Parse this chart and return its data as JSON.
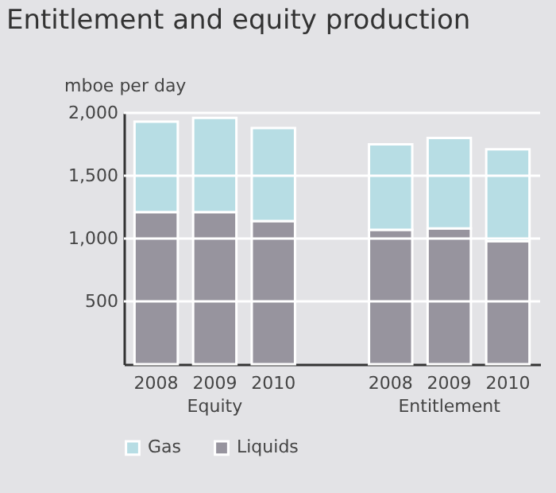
{
  "chart_data": {
    "type": "bar",
    "title": "Entitlement and equity production",
    "ylabel": "mboe per day",
    "categories": [
      "2008",
      "2009",
      "2010",
      "2008",
      "2009",
      "2010"
    ],
    "annotations": [
      "Equity",
      "Entitlement"
    ],
    "stacked": true,
    "series": [
      {
        "name": "Liquids",
        "color": "#97949e",
        "values": [
          1210,
          1210,
          1140,
          1070,
          1080,
          980
        ]
      },
      {
        "name": "Gas",
        "color": "#b7dde4",
        "values": [
          720,
          750,
          740,
          680,
          720,
          730
        ]
      }
    ],
    "ylim": [
      0,
      2000
    ],
    "yticks": [
      {
        "value": 500,
        "label": "500"
      },
      {
        "value": 1000,
        "label": "1,000"
      },
      {
        "value": 1500,
        "label": "1,500"
      },
      {
        "value": 2000,
        "label": "2,000"
      }
    ],
    "grid": "y",
    "legend": "bottom"
  }
}
